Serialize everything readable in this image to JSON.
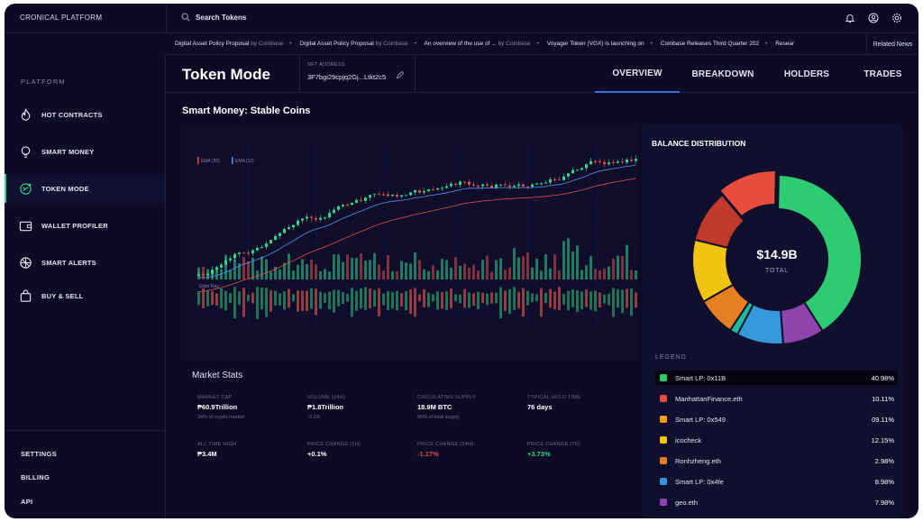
{
  "app": {
    "brand": "CRONICAL PLATFORM"
  },
  "search": {
    "label": "Search Tokens"
  },
  "news": {
    "items": [
      {
        "title": "Digital Asset Policy Proposal",
        "source": " by Coinbase"
      },
      {
        "title": "Digital Asset Policy Proposal",
        "source": " by Coinbase"
      },
      {
        "title": "An overview of the use of ...",
        "source": " by Coinbase"
      },
      {
        "title": "Voyager Token (VGX) is launching on",
        "source": ""
      },
      {
        "title": "Coinbase Releases Third Quarter 202",
        "source": ""
      },
      {
        "title": "Resear",
        "source": ""
      }
    ],
    "button": "Related News"
  },
  "sidebar": {
    "heading": "PLATFORM",
    "items": [
      {
        "label": "HOT CONTRACTS",
        "icon": "flame-icon"
      },
      {
        "label": "SMART MONEY",
        "icon": "lightbulb-icon"
      },
      {
        "label": "TOKEN MODE",
        "icon": "token-icon",
        "active": true
      },
      {
        "label": "WALLET PROFILER",
        "icon": "wallet-icon"
      },
      {
        "label": "SMART ALERTS",
        "icon": "alert-icon"
      },
      {
        "label": "BUY & SELL",
        "icon": "bag-icon"
      }
    ],
    "footer": [
      "SETTINGS",
      "BILLING",
      "API"
    ]
  },
  "header": {
    "title": "Token Mode",
    "nft_label": "NFT ADDRESS",
    "nft_value": "3F7bgi29cpjq2Gj...Ltkt2c5",
    "tabs": [
      "OVERVIEW",
      "BREAKDOWN",
      "HOLDERS",
      "TRADES"
    ],
    "active_tab": 0
  },
  "section_title": "Smart Money: Stable Coins",
  "chart_data": {
    "type": "candlestick",
    "legend": [
      "EMA (26)",
      "EMA (12)"
    ],
    "sub_label": "Elder Ray",
    "colors": {
      "up": "#2ad98a",
      "down": "#e0504a",
      "ema26": "#e0504a",
      "ema12": "#5b8def"
    }
  },
  "market_stats": {
    "title": "Market Stats",
    "items": [
      {
        "label": "MARKET CAP",
        "value": "₱60.9Trillion",
        "sub": "34% of crypto market",
        "tone": ""
      },
      {
        "label": "VOLUME (24H)",
        "value": "₱1.8Trillion",
        "sub": "-3.1%",
        "tone": ""
      },
      {
        "label": "CIRCULATING SUPPLY",
        "value": "18.9M BTC",
        "sub": "90% of total supply",
        "tone": ""
      },
      {
        "label": "TYPICAL HOLD TIME",
        "value": "76 days",
        "sub": "",
        "tone": ""
      },
      {
        "label": "ALL TIME HIGH",
        "value": "₱3.4M",
        "sub": "",
        "tone": ""
      },
      {
        "label": "PRICE CHANGE (1H)",
        "value": "+0.1%",
        "sub": "",
        "tone": ""
      },
      {
        "label": "PRICE CHANGE (24H)",
        "value": "-1.17%",
        "sub": "",
        "tone": "neg"
      },
      {
        "label": "PRICE CHANGE (7D)",
        "value": "+3.73%",
        "sub": "",
        "tone": "pos"
      }
    ]
  },
  "balance": {
    "title": "BALANCE DISTRIBUTION",
    "total": "$14.9B",
    "total_label": "TOTAL",
    "legend_title": "LEGEND",
    "legend": [
      {
        "name": "Smart LP: 0x11B",
        "pct": "40.98%",
        "value": 40.98,
        "color": "#2ecc71"
      },
      {
        "name": "ManhattanFinance.eth",
        "pct": "10.11%",
        "value": 10.11,
        "color": "#e74c3c"
      },
      {
        "name": "Smart LP: 0x549",
        "pct": "09.11%",
        "value": 9.11,
        "color": "#f39c12"
      },
      {
        "name": "icocheck",
        "pct": "12.15%",
        "value": 12.15,
        "color": "#f1c40f"
      },
      {
        "name": "Ronhzheng.eth",
        "pct": "2.98%",
        "value": 2.98,
        "color": "#e67e22"
      },
      {
        "name": "Smart LP: 0x4fe",
        "pct": "8.98%",
        "value": 8.98,
        "color": "#3498db"
      },
      {
        "name": "geo.eth",
        "pct": "7.98%",
        "value": 7.98,
        "color": "#8e44ad"
      }
    ]
  }
}
